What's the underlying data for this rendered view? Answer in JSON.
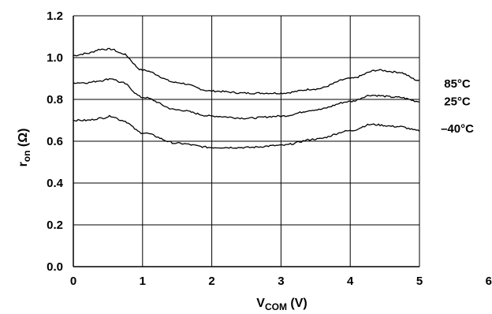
{
  "chart_data": {
    "type": "line",
    "title": "",
    "xlabel": {
      "main": "V",
      "sub": "COM",
      "unit": " (V)"
    },
    "ylabel": {
      "main": "r",
      "sub": "on",
      "unit": " (Ω)"
    },
    "xlim": [
      0,
      6
    ],
    "ylim": [
      0.0,
      1.2
    ],
    "xticks": [
      "0",
      "1",
      "2",
      "3",
      "4",
      "5",
      "6"
    ],
    "yticks": [
      "0.0",
      "0.2",
      "0.4",
      "0.6",
      "0.8",
      "1.0",
      "1.2"
    ],
    "grid": true,
    "legend": "inline-right",
    "series": [
      {
        "name": "85°C",
        "x": [
          0,
          0.2,
          0.4,
          0.55,
          0.7,
          1.0,
          1.5,
          2.0,
          2.5,
          3.0,
          3.5,
          4.0,
          4.4,
          4.7,
          5.0
        ],
        "y": [
          1.01,
          1.02,
          1.04,
          1.04,
          1.02,
          0.94,
          0.88,
          0.84,
          0.83,
          0.83,
          0.85,
          0.9,
          0.94,
          0.93,
          0.89
        ]
      },
      {
        "name": "25°C",
        "x": [
          0,
          0.2,
          0.4,
          0.55,
          0.7,
          1.0,
          1.5,
          2.0,
          2.5,
          3.0,
          3.5,
          4.0,
          4.3,
          4.7,
          5.0
        ],
        "y": [
          0.88,
          0.88,
          0.89,
          0.9,
          0.88,
          0.81,
          0.75,
          0.72,
          0.71,
          0.72,
          0.75,
          0.79,
          0.82,
          0.81,
          0.79
        ]
      },
      {
        "name": "–40°C",
        "x": [
          0,
          0.2,
          0.4,
          0.55,
          0.7,
          1.0,
          1.5,
          2.0,
          2.5,
          3.0,
          3.5,
          4.0,
          4.3,
          4.7,
          5.0
        ],
        "y": [
          0.7,
          0.7,
          0.71,
          0.72,
          0.7,
          0.64,
          0.59,
          0.57,
          0.57,
          0.58,
          0.61,
          0.65,
          0.68,
          0.67,
          0.65
        ]
      }
    ],
    "colors": {
      "line": "#000000",
      "grid": "#000000",
      "background": "#ffffff"
    }
  }
}
